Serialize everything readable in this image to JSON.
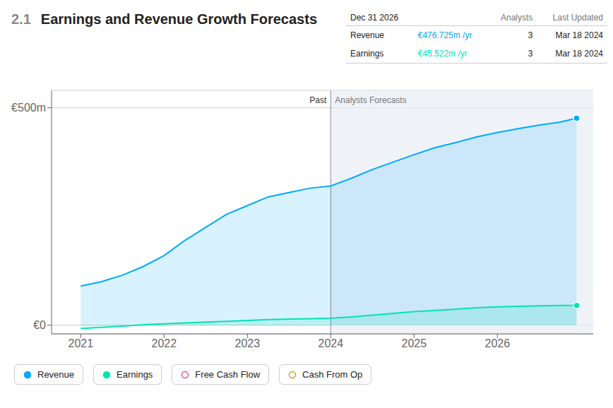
{
  "chart_data": {
    "type": "area",
    "title": "Earnings and Revenue Growth Forecasts",
    "section_number": "2.1",
    "x": [
      2021.0,
      2021.25,
      2021.5,
      2021.75,
      2022.0,
      2022.25,
      2022.5,
      2022.75,
      2023.0,
      2023.25,
      2023.5,
      2023.75,
      2024.0,
      2024.25,
      2024.5,
      2024.75,
      2025.0,
      2025.25,
      2025.5,
      2025.75,
      2026.0,
      2026.25,
      2026.5,
      2026.75,
      2026.95
    ],
    "xlim": [
      2020.65,
      2027.15
    ],
    "xticks": [
      2021,
      2022,
      2023,
      2024,
      2025,
      2026
    ],
    "ylim": [
      -20,
      540
    ],
    "yticks": [
      {
        "value": 0,
        "label": "€0"
      },
      {
        "value": 500,
        "label": "€500m"
      }
    ],
    "grid": true,
    "series": [
      {
        "name": "Revenue",
        "color": "#00aaff",
        "marker": "circle",
        "values": [
          90,
          100,
          115,
          135,
          160,
          195,
          225,
          255,
          275,
          295,
          305,
          315,
          320,
          338,
          358,
          375,
          392,
          408,
          420,
          433,
          443,
          452,
          460,
          467,
          476
        ]
      },
      {
        "name": "Earnings",
        "color": "#00e5b0",
        "marker": "circle",
        "values": [
          -8,
          -5,
          -2,
          1,
          3,
          5,
          7,
          9,
          11,
          13,
          14,
          15,
          16,
          19,
          23,
          27,
          31,
          34,
          37,
          40,
          42,
          43.5,
          44.5,
          45.2,
          45.5
        ]
      },
      {
        "name": "Free Cash Flow",
        "color": "#e05c8a",
        "marker": "open_circle",
        "values": [
          null,
          null,
          null,
          null,
          null,
          null,
          null,
          null,
          null,
          null,
          null,
          null,
          null,
          null,
          null,
          null,
          null,
          null,
          null,
          null,
          null,
          null,
          null,
          null,
          null
        ]
      },
      {
        "name": "Cash From Op",
        "color": "#c8a820",
        "marker": "open_circle",
        "values": [
          null,
          null,
          null,
          null,
          null,
          null,
          null,
          null,
          null,
          null,
          null,
          null,
          null,
          null,
          null,
          null,
          null,
          null,
          null,
          null,
          null,
          null,
          null,
          null,
          null
        ]
      }
    ],
    "annotations": [
      {
        "text": "Past",
        "x": 2024.0,
        "side": "left"
      },
      {
        "text": "Analysts Forecasts",
        "x": 2024.0,
        "side": "right"
      }
    ],
    "table": {
      "header": [
        "Dec 31 2026",
        "Analysts",
        "Last Updated"
      ],
      "rows": [
        {
          "label": "Revenue",
          "value": "€476.725m /yr",
          "analysts": "3",
          "updated": "Mar 18 2024"
        },
        {
          "label": "Earnings",
          "value": "€45.522m /yr",
          "analysts": "3",
          "updated": "Mar 18 2024"
        }
      ]
    }
  }
}
